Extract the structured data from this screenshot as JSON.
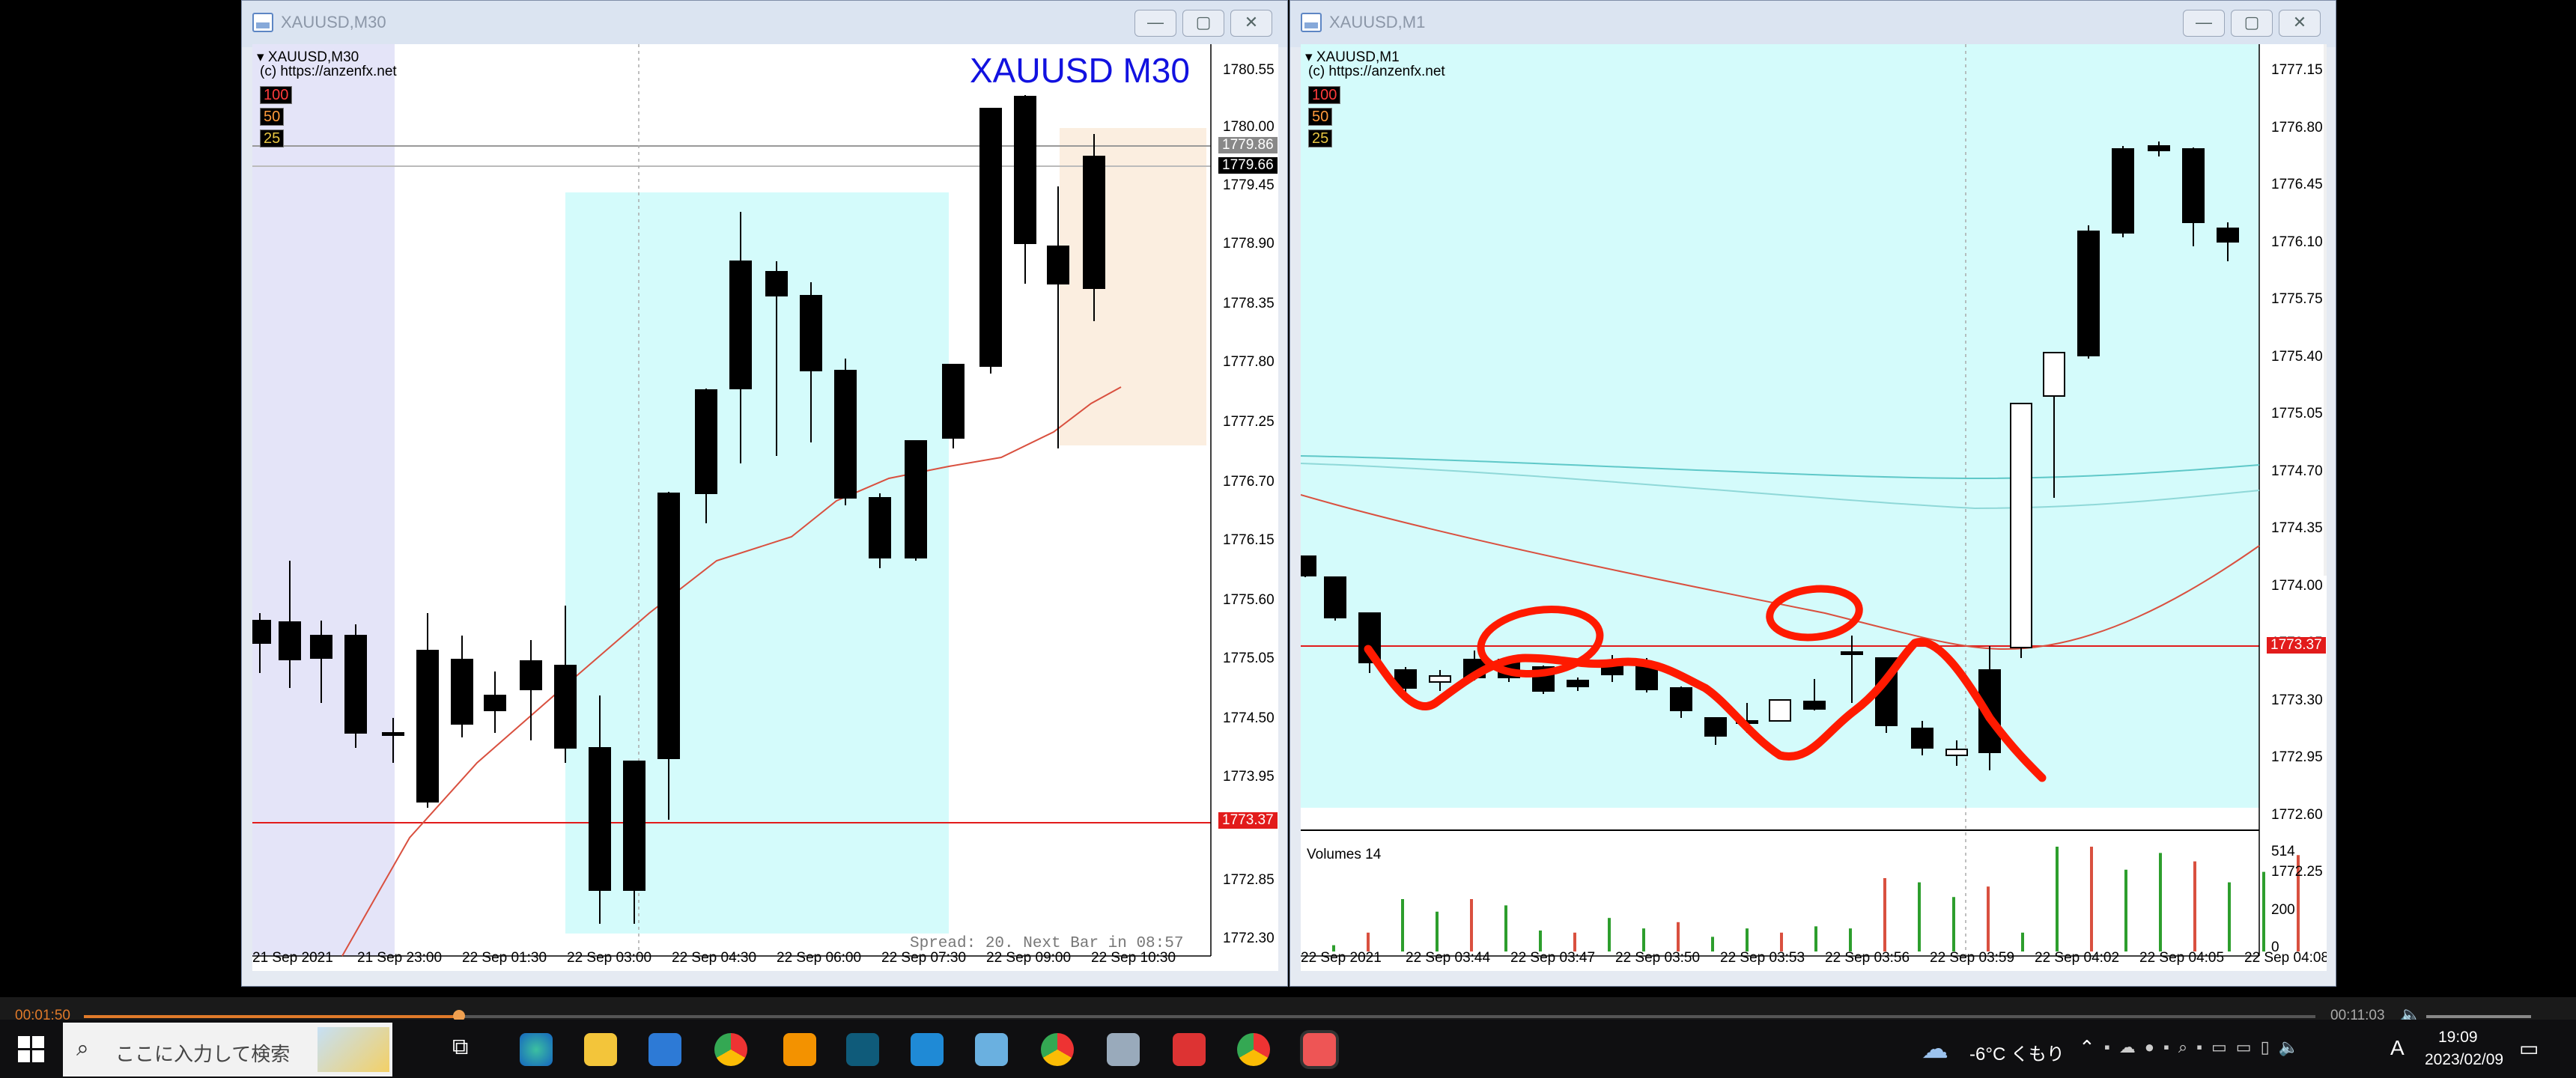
{
  "left_window": {
    "title": "XAUUSD,M30",
    "chart_header": "XAUUSD,M30",
    "copyright": "(c) https://anzenfx.net",
    "big_label": "XAUUSD M30",
    "levels": [
      "100",
      "50",
      "25"
    ],
    "footer": "Spread: 20. Next Bar in 08:57",
    "price_labels": [
      "1780.55",
      "1780.00",
      "1779.45",
      "1778.90",
      "1778.35",
      "1777.80",
      "1777.25",
      "1776.70",
      "1776.15",
      "1775.60",
      "1775.05",
      "1774.50",
      "1773.95",
      "1773.37",
      "1772.85",
      "1772.30"
    ],
    "tag_ask": "1779.86",
    "tag_bid": "1779.66",
    "tag_red": "1773.37",
    "date_labels": [
      "21 Sep 2021",
      "21 Sep 23:00",
      "22 Sep 01:30",
      "22 Sep 03:00",
      "22 Sep 04:30",
      "22 Sep 06:00",
      "22 Sep 07:30",
      "22 Sep 09:00",
      "22 Sep 10:30"
    ]
  },
  "right_window": {
    "title": "XAUUSD,M1",
    "chart_header": "XAUUSD,M1",
    "copyright": "(c) https://anzenfx.net",
    "levels": [
      "100",
      "50",
      "25"
    ],
    "volumes_label": "Volumes 14",
    "vol_scale": [
      "514",
      "200",
      "0"
    ],
    "price_labels": [
      "1777.15",
      "1776.80",
      "1776.45",
      "1776.10",
      "1775.75",
      "1775.40",
      "1775.05",
      "1774.70",
      "1774.35",
      "1774.00",
      "1773.65",
      "1773.30",
      "1772.95",
      "1772.60",
      "1772.25"
    ],
    "tag_red": "1773.37",
    "date_labels": [
      "22 Sep 2021",
      "22 Sep 03:44",
      "22 Sep 03:47",
      "22 Sep 03:50",
      "22 Sep 03:53",
      "22 Sep 03:56",
      "22 Sep 03:59",
      "22 Sep 04:02",
      "22 Sep 04:05",
      "22 Sep 04:08"
    ]
  },
  "player": {
    "elapsed": "00:01:50",
    "total": "00:11:03",
    "progress": 0.168
  },
  "taskbar": {
    "search_placeholder": "ここに入力して検索",
    "weather": "-6°C くもり",
    "time": "19:09",
    "date": "2023/02/09",
    "ime": "A"
  },
  "colors": {
    "cyan_zone": "#d4fbfb",
    "lavender_zone": "#e4e4f8",
    "peach_zone": "#fbeee0",
    "bull": "#ffffff",
    "bear": "#000000",
    "annotation": "#ff1a00"
  }
}
